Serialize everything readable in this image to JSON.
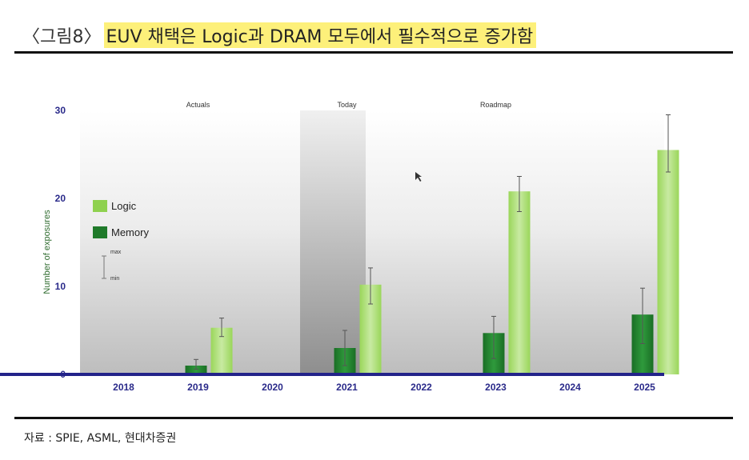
{
  "header": {
    "figure_label": "〈그림8〉",
    "title": "EUV 채택은 Logic과 DRAM 모두에서 필수적으로 증가함"
  },
  "source": "자료 : SPIE, ASML, 현대차증권",
  "chart_data": {
    "type": "bar",
    "categories": [
      "2018",
      "2019",
      "2020",
      "2021",
      "2022",
      "2023",
      "2024",
      "2025"
    ],
    "series": [
      {
        "name": "Memory",
        "color": "#1f7a2a",
        "values": [
          0,
          1,
          0,
          3,
          0,
          4.7,
          0,
          6.8
        ],
        "min": [
          null,
          0.6,
          null,
          1.0,
          null,
          1.8,
          null,
          3.5
        ],
        "max": [
          null,
          1.7,
          null,
          5.0,
          null,
          6.6,
          null,
          9.8
        ]
      },
      {
        "name": "Logic",
        "color": "#8fd14f",
        "values": [
          0,
          5.3,
          0,
          10.2,
          0,
          20.8,
          0,
          25.5
        ],
        "min": [
          null,
          4.3,
          null,
          8.0,
          null,
          18.5,
          null,
          23.0
        ],
        "max": [
          null,
          6.4,
          null,
          12.1,
          null,
          22.5,
          null,
          29.5
        ]
      }
    ],
    "ylabel": "Number of exposures",
    "ylim": [
      0,
      30
    ],
    "yticks": [
      0,
      10,
      20,
      30
    ],
    "periods": [
      "Actuals",
      "Today",
      "Roadmap"
    ],
    "legend_errorbar": {
      "max": "max",
      "min": "min"
    },
    "legend_position": "upper-left",
    "colors": {
      "axis": "#23238a",
      "tick_text": "#2a2a8a",
      "ylabel": "#2e6b2e"
    }
  }
}
